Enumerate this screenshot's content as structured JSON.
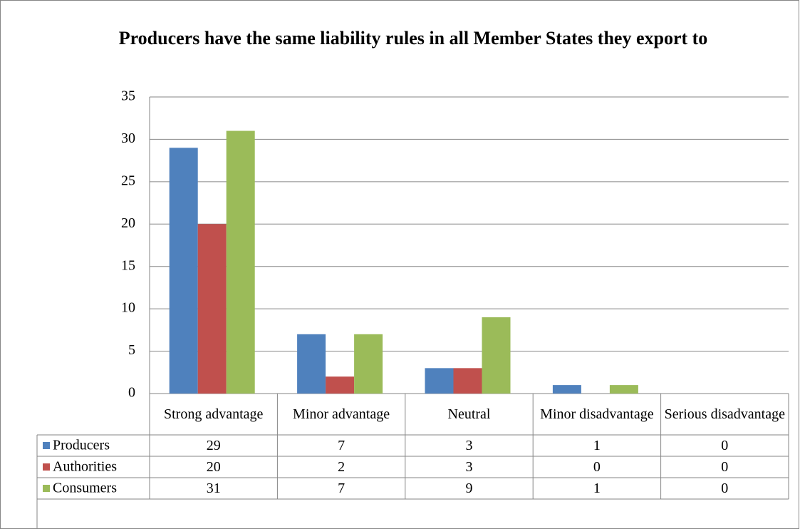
{
  "chart_data": {
    "type": "bar",
    "title": "Producers have the same liability rules in all Member States they export to",
    "categories": [
      "Strong advantage",
      "Minor advantage",
      "Neutral",
      "Minor disadvantage",
      "Serious disadvantage"
    ],
    "series": [
      {
        "name": "Producers",
        "color": "#4f81bd",
        "values": [
          29,
          7,
          3,
          1,
          0
        ]
      },
      {
        "name": "Authorities",
        "color": "#c0504d",
        "values": [
          20,
          2,
          3,
          0,
          0
        ]
      },
      {
        "name": "Consumers",
        "color": "#9bbb59",
        "values": [
          31,
          7,
          9,
          1,
          0
        ]
      }
    ],
    "ylim": [
      0,
      35
    ],
    "yticks": [
      0,
      5,
      10,
      15,
      20,
      25,
      30,
      35
    ],
    "grid": true,
    "data_table": true
  }
}
